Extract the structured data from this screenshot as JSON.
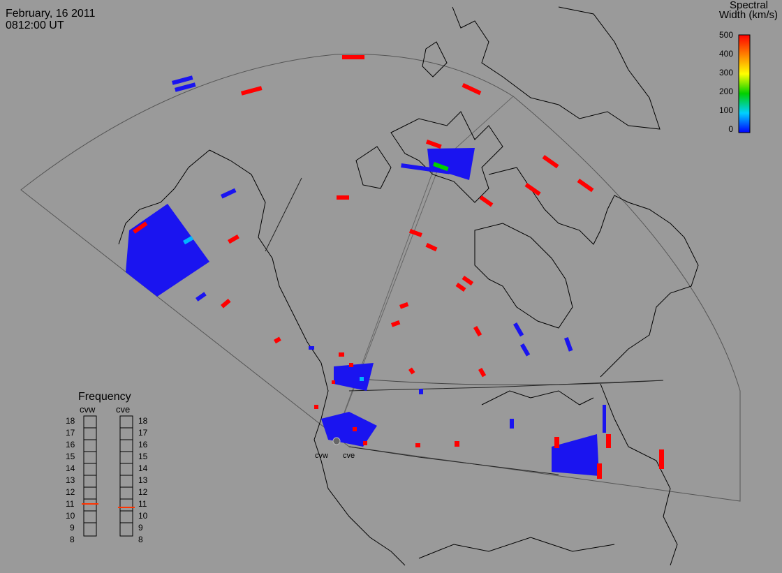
{
  "header": {
    "date": "February, 16 2011",
    "time": "0812:00 UT"
  },
  "colorbar": {
    "title_line1": "Spectral",
    "title_line2": "Width (km/s)",
    "ticks": [
      "500",
      "400",
      "300",
      "200",
      "100",
      "0"
    ],
    "colors": [
      "#ff0000",
      "#ff8000",
      "#ffff00",
      "#00d000",
      "#00d0ff",
      "#0000ff"
    ]
  },
  "frequency": {
    "title": "Frequency",
    "radars": [
      "cvw",
      "cve"
    ],
    "scale": [
      "18",
      "17",
      "16",
      "15",
      "14",
      "13",
      "12",
      "11",
      "10",
      "9",
      "8"
    ],
    "cvw_value_mhz": 10.9,
    "cve_value_mhz": 10.6,
    "marker_color": "#ff3300"
  },
  "sites": {
    "west": "cvw",
    "east": "cve"
  },
  "colors": {
    "background": "#9a9a9a",
    "coast": "#000000",
    "fov": "#555555",
    "low_width": "#1a14f0",
    "high_width": "#ff0000"
  }
}
